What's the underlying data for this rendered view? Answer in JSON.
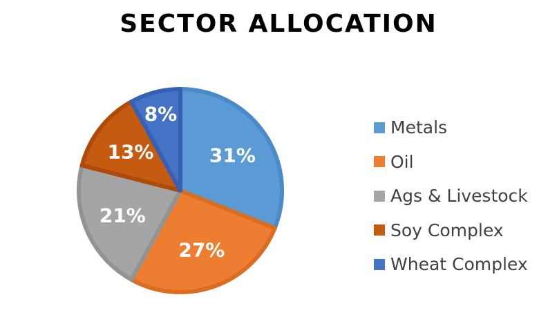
{
  "chart_data": {
    "type": "pie",
    "title": "SECTOR ALLOCATION",
    "categories": [
      "Metals",
      "Oil",
      "Ags & Livestock",
      "Soy Complex",
      "Wheat Complex"
    ],
    "values": [
      31,
      27,
      21,
      13,
      8
    ],
    "labels": [
      "31%",
      "27%",
      "21%",
      "13%",
      "8%"
    ],
    "colors": [
      "#5b9bd5",
      "#ed7d31",
      "#a5a5a5",
      "#c55a11",
      "#4472c4"
    ],
    "border_colors": [
      "#4a8ac8",
      "#d96d22",
      "#939393",
      "#ae4b0a",
      "#3660b2"
    ],
    "legend_position": "right",
    "start_angle_deg": 0,
    "direction": "clockwise"
  },
  "legend": {
    "items": [
      {
        "label": "Metals",
        "color": "#5b9bd5"
      },
      {
        "label": "Oil",
        "color": "#ed7d31"
      },
      {
        "label": "Ags & Livestock",
        "color": "#a5a5a5"
      },
      {
        "label": "Soy Complex",
        "color": "#c55a11"
      },
      {
        "label": "Wheat Complex",
        "color": "#4472c4"
      }
    ]
  }
}
